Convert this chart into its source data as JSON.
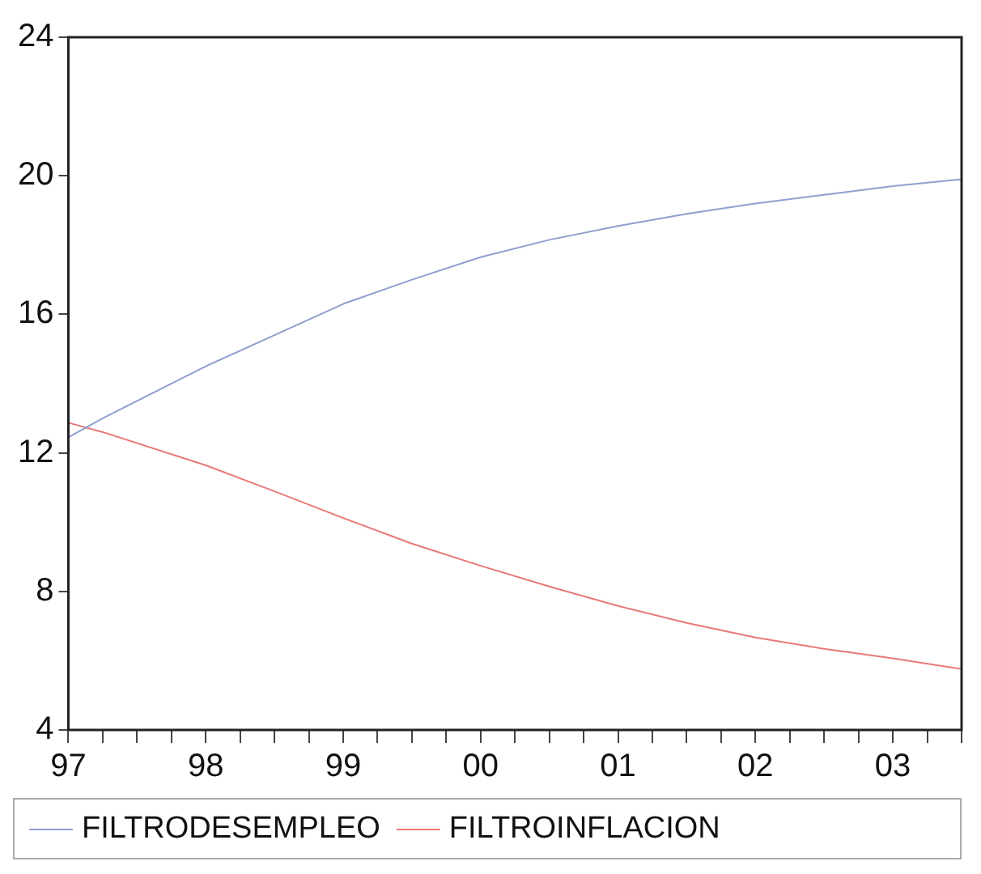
{
  "chart_data": {
    "type": "line",
    "x": [
      1997,
      1997.25,
      1998,
      1998.5,
      1999,
      1999.5,
      2000,
      2000.5,
      2001,
      2001.5,
      2002,
      2002.5,
      2003,
      2003.5
    ],
    "series": [
      {
        "name": "FILTRODESEMPLEO",
        "color": "#8f9fcf",
        "values": [
          12.45,
          13.0,
          14.5,
          15.4,
          16.3,
          17.0,
          17.65,
          18.15,
          18.55,
          18.9,
          19.2,
          19.45,
          19.7,
          19.9
        ]
      },
      {
        "name": "FILTROINFLACION",
        "color": "#e87878",
        "values": [
          12.87,
          12.6,
          11.64,
          10.89,
          10.12,
          9.38,
          8.74,
          8.14,
          7.58,
          7.09,
          6.67,
          6.34,
          6.07,
          5.76
        ]
      }
    ],
    "xlim": [
      1997,
      2003.5
    ],
    "xticks": [
      {
        "value": 1997,
        "label": "97"
      },
      {
        "value": 1997.25,
        "label": null
      },
      {
        "value": 1997.5,
        "label": null
      },
      {
        "value": 1997.75,
        "label": null
      },
      {
        "value": 1998,
        "label": "98"
      },
      {
        "value": 1998.25,
        "label": null
      },
      {
        "value": 1998.5,
        "label": null
      },
      {
        "value": 1998.75,
        "label": null
      },
      {
        "value": 1999,
        "label": "99"
      },
      {
        "value": 1999.25,
        "label": null
      },
      {
        "value": 1999.5,
        "label": null
      },
      {
        "value": 1999.75,
        "label": null
      },
      {
        "value": 2000,
        "label": "00"
      },
      {
        "value": 2000.25,
        "label": null
      },
      {
        "value": 2000.5,
        "label": null
      },
      {
        "value": 2000.75,
        "label": null
      },
      {
        "value": 2001,
        "label": "01"
      },
      {
        "value": 2001.25,
        "label": null
      },
      {
        "value": 2001.5,
        "label": null
      },
      {
        "value": 2001.75,
        "label": null
      },
      {
        "value": 2002,
        "label": "02"
      },
      {
        "value": 2002.25,
        "label": null
      },
      {
        "value": 2002.5,
        "label": null
      },
      {
        "value": 2002.75,
        "label": null
      },
      {
        "value": 2003,
        "label": "03"
      },
      {
        "value": 2003.25,
        "label": null
      },
      {
        "value": 2003.5,
        "label": null
      }
    ],
    "ylim": [
      4,
      24
    ],
    "yticks": [
      4,
      8,
      12,
      16,
      20,
      24
    ],
    "grid": false,
    "legend": "bottom",
    "marker": "none",
    "line_style": "solid"
  }
}
